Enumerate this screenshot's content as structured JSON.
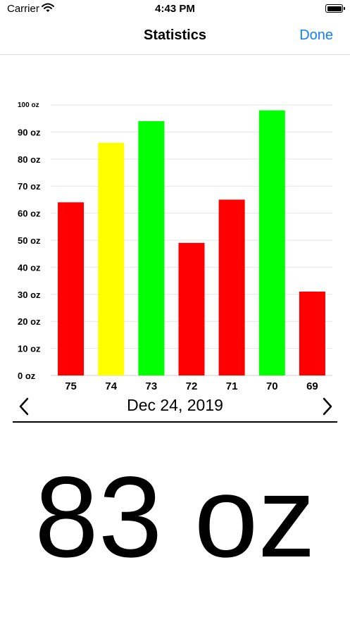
{
  "status_bar": {
    "carrier": "Carrier",
    "time": "4:43 PM"
  },
  "navbar": {
    "title": "Statistics",
    "done_label": "Done"
  },
  "colors": {
    "accent": "#147efb",
    "red": "#ff0000",
    "yellow": "#ffff00",
    "green": "#00ff00"
  },
  "icons": {
    "prev": "chevron-left-icon",
    "next": "chevron-right-icon",
    "wifi": "wifi-icon",
    "battery": "battery-icon"
  },
  "chart_data": {
    "type": "bar",
    "categories": [
      "75",
      "74",
      "73",
      "72",
      "71",
      "70",
      "69"
    ],
    "values": [
      64,
      86,
      94,
      49,
      65,
      98,
      31
    ],
    "bar_colors": [
      "#ff0000",
      "#ffff00",
      "#00ff00",
      "#ff0000",
      "#ff0000",
      "#00ff00",
      "#ff0000"
    ],
    "yticks": [
      "0 oz",
      "10 oz",
      "20 oz",
      "30 oz",
      "40 oz",
      "50 oz",
      "60 oz",
      "70 oz",
      "80 oz",
      "90 oz",
      "100 oz"
    ],
    "ylim": [
      0,
      100
    ],
    "grid": true
  },
  "date_nav": {
    "date": "Dec 24, 2019"
  },
  "value_display": "83 oz"
}
